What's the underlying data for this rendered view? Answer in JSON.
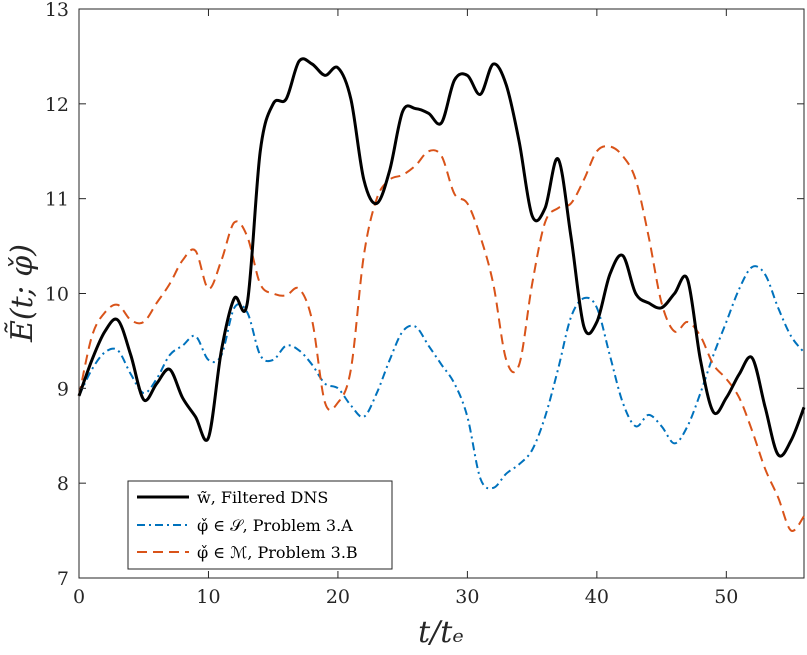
{
  "chart_data": {
    "type": "line",
    "title": "",
    "xlabel": "t/tₑ",
    "ylabel": "Ẽ(t; φ̌)",
    "xlim": [
      0,
      56
    ],
    "ylim": [
      7,
      13
    ],
    "xticks": [
      0,
      10,
      20,
      30,
      40,
      50
    ],
    "yticks": [
      7,
      8,
      9,
      10,
      11,
      12,
      13
    ],
    "xtick_labels": [
      "0",
      "10",
      "20",
      "30",
      "40",
      "50"
    ],
    "ytick_labels": [
      "7",
      "8",
      "9",
      "10",
      "11",
      "12",
      "13"
    ],
    "grid": false,
    "legend_position": "bottom-left",
    "series": [
      {
        "name": "w̃, Filtered DNS",
        "color": "#000000",
        "style": "solid",
        "x": [
          0,
          1,
          2,
          3,
          4,
          5,
          6,
          7,
          8,
          9,
          10,
          11,
          12,
          13,
          14,
          15,
          16,
          17,
          18,
          19,
          20,
          21,
          22,
          23,
          24,
          25,
          26,
          27,
          28,
          29,
          30,
          31,
          32,
          33,
          34,
          35,
          36,
          37,
          38,
          39,
          40,
          41,
          42,
          43,
          44,
          45,
          46,
          47,
          48,
          49,
          50,
          51,
          52,
          53,
          54,
          55,
          56
        ],
        "y": [
          8.92,
          9.3,
          9.6,
          9.72,
          9.35,
          8.88,
          9.05,
          9.2,
          8.9,
          8.7,
          8.48,
          9.4,
          9.95,
          9.9,
          11.5,
          12.0,
          12.05,
          12.45,
          12.42,
          12.3,
          12.38,
          12.05,
          11.2,
          10.95,
          11.3,
          11.92,
          11.95,
          11.9,
          11.8,
          12.25,
          12.3,
          12.1,
          12.42,
          12.2,
          11.6,
          10.82,
          10.9,
          11.42,
          10.6,
          9.65,
          9.7,
          10.2,
          10.4,
          10.0,
          9.9,
          9.85,
          10.0,
          10.15,
          9.3,
          8.75,
          8.9,
          9.15,
          9.32,
          8.8,
          8.3,
          8.45,
          8.8
        ]
      },
      {
        "name": "φ̌ ∈ 𝒮, Problem 3.A",
        "color": "#0072BD",
        "style": "dashdot",
        "x": [
          0,
          1,
          2,
          3,
          4,
          5,
          6,
          7,
          8,
          9,
          10,
          11,
          12,
          13,
          14,
          15,
          16,
          17,
          18,
          19,
          20,
          21,
          22,
          23,
          24,
          25,
          26,
          27,
          28,
          29,
          30,
          31,
          32,
          33,
          34,
          35,
          36,
          37,
          38,
          39,
          40,
          41,
          42,
          43,
          44,
          45,
          46,
          47,
          48,
          49,
          50,
          51,
          52,
          53,
          54,
          55,
          56
        ],
        "y": [
          8.92,
          9.2,
          9.38,
          9.4,
          9.15,
          8.95,
          9.1,
          9.35,
          9.45,
          9.55,
          9.3,
          9.35,
          9.85,
          9.8,
          9.35,
          9.3,
          9.45,
          9.4,
          9.25,
          9.05,
          9.0,
          8.82,
          8.7,
          8.95,
          9.3,
          9.6,
          9.65,
          9.45,
          9.25,
          9.05,
          8.7,
          8.05,
          7.95,
          8.1,
          8.2,
          8.35,
          8.7,
          9.2,
          9.75,
          9.95,
          9.85,
          9.35,
          8.85,
          8.6,
          8.72,
          8.6,
          8.42,
          8.6,
          8.95,
          9.35,
          9.7,
          10.05,
          10.28,
          10.2,
          9.85,
          9.55,
          9.38
        ]
      },
      {
        "name": "φ̌ ∈ ℳ, Problem 3.B",
        "color": "#D95319",
        "style": "dashed",
        "x": [
          0,
          1,
          2,
          3,
          4,
          5,
          6,
          7,
          8,
          9,
          10,
          11,
          12,
          13,
          14,
          15,
          16,
          17,
          18,
          19,
          20,
          21,
          22,
          23,
          24,
          25,
          26,
          27,
          28,
          29,
          30,
          31,
          32,
          33,
          34,
          35,
          36,
          37,
          38,
          39,
          40,
          41,
          42,
          43,
          44,
          45,
          46,
          47,
          48,
          49,
          50,
          51,
          52,
          53,
          54,
          55,
          56
        ],
        "y": [
          8.92,
          9.55,
          9.8,
          9.88,
          9.72,
          9.7,
          9.9,
          10.1,
          10.35,
          10.45,
          10.05,
          10.35,
          10.75,
          10.6,
          10.1,
          10.0,
          9.98,
          10.05,
          9.72,
          8.85,
          8.85,
          9.2,
          10.4,
          11.0,
          11.2,
          11.25,
          11.35,
          11.5,
          11.45,
          11.05,
          10.95,
          10.6,
          10.1,
          9.3,
          9.25,
          10.1,
          10.75,
          10.9,
          10.95,
          11.2,
          11.5,
          11.55,
          11.45,
          11.2,
          10.6,
          9.9,
          9.6,
          9.7,
          9.55,
          9.25,
          9.1,
          8.9,
          8.55,
          8.15,
          7.85,
          7.5,
          7.65
        ]
      }
    ]
  }
}
